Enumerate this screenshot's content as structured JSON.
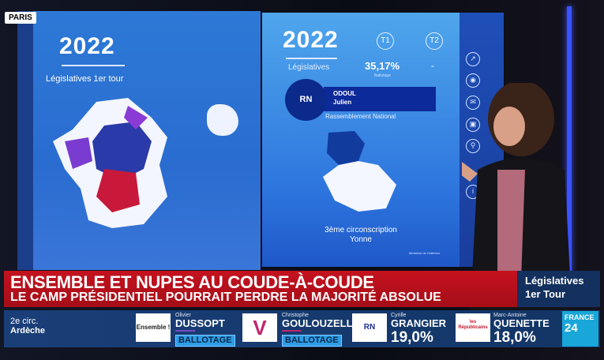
{
  "location_tag": "PARIS",
  "left_panel": {
    "year": "2022",
    "subtitle": "Législatives 1er tour"
  },
  "right_panel": {
    "year": "2022",
    "subtitle": "Législatives",
    "t1_label": "T1",
    "t2_label": "T2",
    "t1_value": "35,17%",
    "t1_status": "Ballotage",
    "t2_value": "-",
    "candidate": {
      "party_abbr": "RN",
      "last_name": "ODOUL",
      "first_name": "Julien",
      "party": "Rassemblement National"
    },
    "constituency": "3ème circonscription",
    "department": "Yonne",
    "source": "Ministère de l'Intérieur"
  },
  "sidebar_icons": [
    "share-icon",
    "broadcast-icon",
    "mail-icon",
    "image-icon",
    "search-icon",
    "info-icon"
  ],
  "banner": {
    "headline": "ENSEMBLE ET NUPES AU COUDE-À-COUDE",
    "subheadline": "LE CAMP PRÉSIDENTIEL POURRAIT PERDRE LA MAJORITÉ ABSOLUE",
    "side_line1": "Législatives",
    "side_line2": "1er Tour"
  },
  "ticker": {
    "circ": "2e circ.",
    "department": "Ardèche",
    "candidates": [
      {
        "logo": "Ensemble !",
        "first": "Olivier",
        "last": "DUSSOPT",
        "result": "BALLOTAGE",
        "color": "#7b4cc9"
      },
      {
        "logo": "V",
        "first": "Christophe",
        "last": "GOULOUZELLE",
        "result": "BALLOTAGE",
        "color": "#c0266b"
      },
      {
        "logo": "RN",
        "first": "Cyrille",
        "last": "GRANGIER",
        "result": "19,0%",
        "color": "#1e2f8c"
      },
      {
        "logo": "les Républicains",
        "first": "Marc-Antoine",
        "last": "QUENETTE",
        "result": "18,0%",
        "color": "#2b5cd6"
      }
    ]
  },
  "channel": {
    "line1": "FRANCE",
    "line2": "24"
  }
}
